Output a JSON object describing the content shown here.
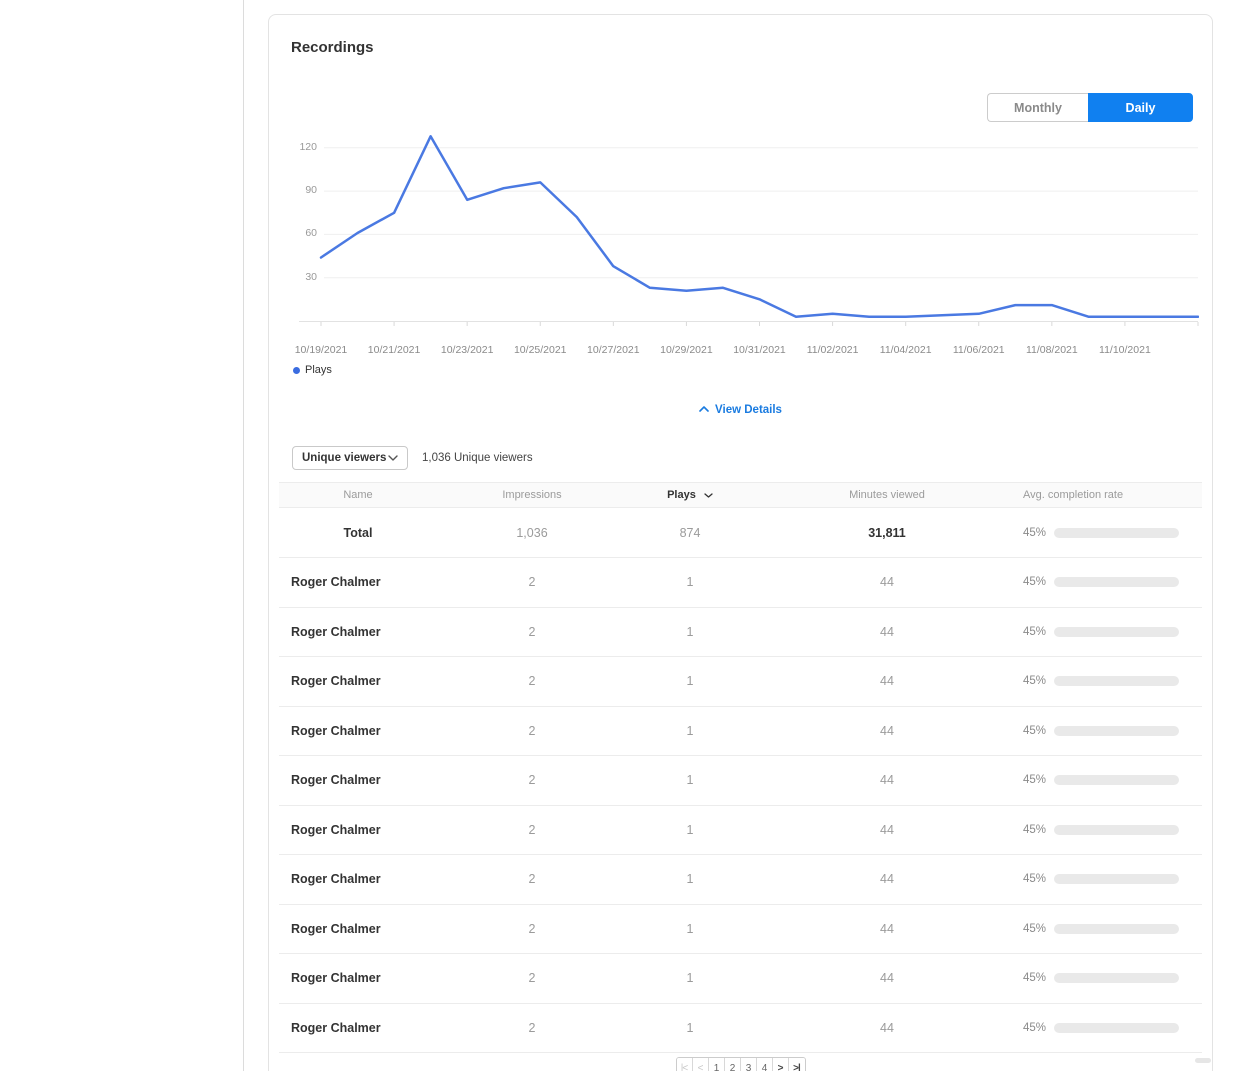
{
  "card": {
    "title": "Recordings"
  },
  "toggle": {
    "monthly_label": "Monthly",
    "daily_label": "Daily",
    "selected": "Daily"
  },
  "chart_data": {
    "type": "line",
    "x": [
      "10/19/2021",
      "10/20/2021",
      "10/21/2021",
      "10/22/2021",
      "10/23/2021",
      "10/24/2021",
      "10/25/2021",
      "10/26/2021",
      "10/27/2021",
      "10/28/2021",
      "10/29/2021",
      "10/30/2021",
      "10/31/2021",
      "11/01/2021",
      "11/02/2021",
      "11/03/2021",
      "11/04/2021",
      "11/05/2021",
      "11/06/2021",
      "11/07/2021",
      "11/08/2021",
      "11/09/2021",
      "11/10/2021",
      "11/11/2021",
      "11/12/2021"
    ],
    "series": [
      {
        "name": "Plays",
        "color": "#4a79e2",
        "values": [
          44,
          61,
          75,
          128,
          84,
          92,
          96,
          72,
          38,
          23,
          21,
          23,
          15,
          3,
          5,
          3,
          3,
          4,
          5,
          11,
          11,
          3,
          3,
          3,
          3
        ]
      }
    ],
    "axis_tick_labels": [
      "10/19/2021",
      "10/21/2021",
      "10/23/2021",
      "10/25/2021",
      "10/27/2021",
      "10/29/2021",
      "10/31/2021",
      "11/02/2021",
      "11/04/2021",
      "11/06/2021",
      "11/08/2021",
      "11/10/2021"
    ],
    "yticks": [
      30,
      60,
      90,
      120
    ],
    "ylim": [
      0,
      135
    ],
    "grid": true,
    "legend_position": "bottom-left"
  },
  "details_link": {
    "label": "View Details"
  },
  "filter": {
    "dropdown_value": "Unique viewers",
    "summary": "1,036 Unique viewers"
  },
  "table": {
    "columns": [
      "Name",
      "Impressions",
      "Plays",
      "Minutes viewed",
      "Avg. completion rate"
    ],
    "sorted_column": "Plays",
    "total_row": {
      "name": "Total",
      "impressions": "1,036",
      "plays": "874",
      "minutes": "31,811",
      "completion": "45%",
      "completion_pct": 45
    },
    "rows": [
      {
        "name": "Roger Chalmer",
        "impressions": "2",
        "plays": "1",
        "minutes": "44",
        "completion": "45%",
        "completion_pct": 45
      },
      {
        "name": "Roger Chalmer",
        "impressions": "2",
        "plays": "1",
        "minutes": "44",
        "completion": "45%",
        "completion_pct": 45
      },
      {
        "name": "Roger Chalmer",
        "impressions": "2",
        "plays": "1",
        "minutes": "44",
        "completion": "45%",
        "completion_pct": 45
      },
      {
        "name": "Roger Chalmer",
        "impressions": "2",
        "plays": "1",
        "minutes": "44",
        "completion": "45%",
        "completion_pct": 45
      },
      {
        "name": "Roger Chalmer",
        "impressions": "2",
        "plays": "1",
        "minutes": "44",
        "completion": "45%",
        "completion_pct": 45
      },
      {
        "name": "Roger Chalmer",
        "impressions": "2",
        "plays": "1",
        "minutes": "44",
        "completion": "45%",
        "completion_pct": 45
      },
      {
        "name": "Roger Chalmer",
        "impressions": "2",
        "plays": "1",
        "minutes": "44",
        "completion": "45%",
        "completion_pct": 45
      },
      {
        "name": "Roger Chalmer",
        "impressions": "2",
        "plays": "1",
        "minutes": "44",
        "completion": "45%",
        "completion_pct": 45
      },
      {
        "name": "Roger Chalmer",
        "impressions": "2",
        "plays": "1",
        "minutes": "44",
        "completion": "45%",
        "completion_pct": 45
      },
      {
        "name": "Roger Chalmer",
        "impressions": "2",
        "plays": "1",
        "minutes": "44",
        "completion": "45%",
        "completion_pct": 45
      }
    ]
  },
  "pagination": {
    "items": [
      {
        "label": "|<",
        "state": "disabled"
      },
      {
        "label": "<",
        "state": "disabled"
      },
      {
        "label": "1",
        "state": "normal"
      },
      {
        "label": "2",
        "state": "normal"
      },
      {
        "label": "3",
        "state": "normal"
      },
      {
        "label": "4",
        "state": "normal"
      },
      {
        "label": ">",
        "state": "dark"
      },
      {
        "label": ">|",
        "state": "dark"
      }
    ]
  },
  "colors": {
    "accent_blue": "#1080f0",
    "line_blue": "#4a79e2",
    "legend_dot_blue": "#3a6ce0",
    "link_blue": "#1a7be0",
    "bar_green": "#84ca74",
    "bar_track": "#e9e9e9"
  }
}
